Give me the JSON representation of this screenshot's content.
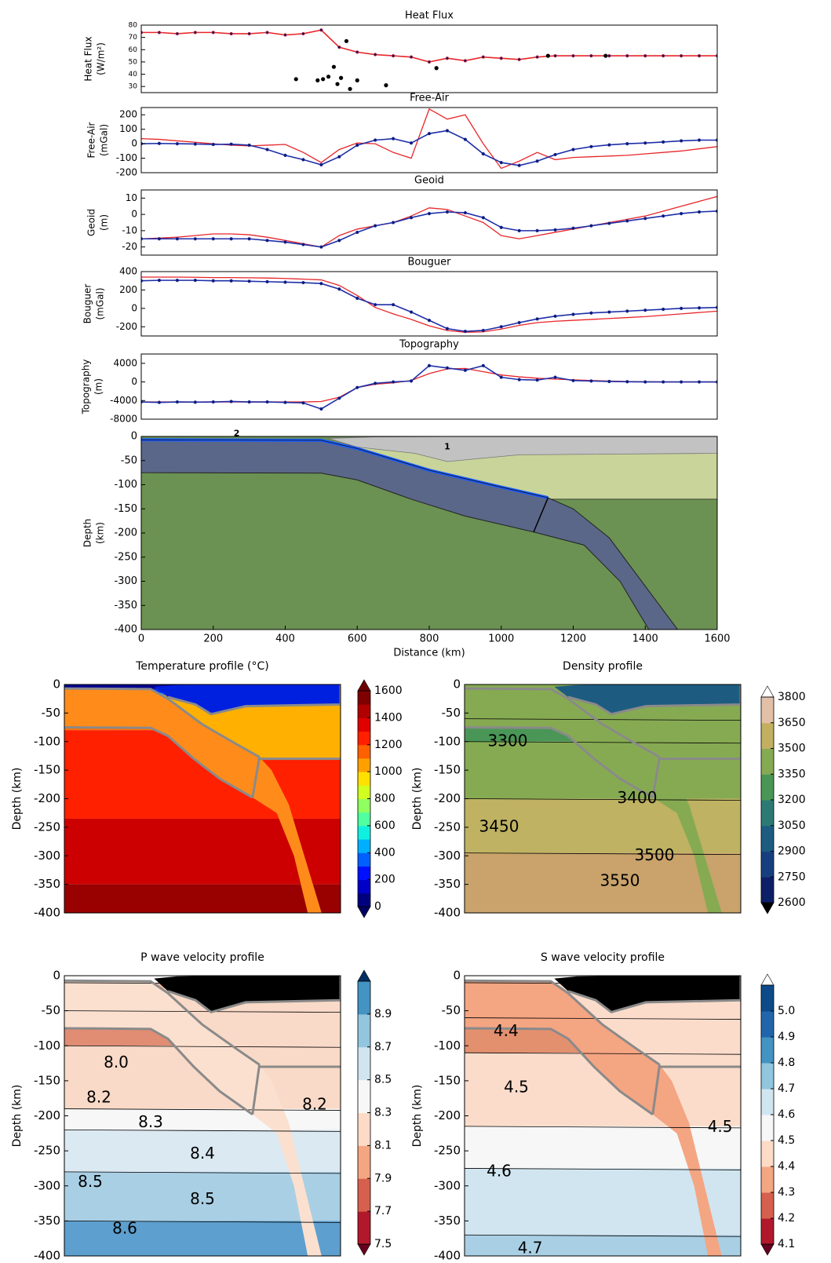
{
  "chart_data": [
    {
      "type": "line",
      "title": "Heat Flux",
      "ylabel": [
        "Heat Flux",
        "(W/m²)"
      ],
      "xlim": [
        0,
        1600
      ],
      "ylim": [
        25,
        80
      ],
      "yticks": [
        30,
        40,
        50,
        60,
        70,
        80
      ],
      "x": [
        0,
        50,
        100,
        150,
        200,
        250,
        300,
        350,
        400,
        450,
        500,
        550,
        600,
        650,
        700,
        750,
        800,
        850,
        900,
        950,
        1000,
        1050,
        1100,
        1150,
        1200,
        1250,
        1300,
        1350,
        1400,
        1450,
        1500,
        1550,
        1600
      ],
      "series": [
        {
          "mode": "line-dots",
          "color": "#e8262a",
          "values": [
            74,
            74,
            73,
            74,
            74,
            73,
            73,
            74,
            72,
            73,
            76,
            62,
            58,
            56,
            55,
            54,
            50,
            53,
            51,
            54,
            53,
            52,
            54,
            55,
            55,
            55,
            55,
            55,
            55,
            55,
            55,
            55,
            55
          ]
        },
        {
          "mode": "scatter",
          "color": "#000000",
          "x": [
            430,
            490,
            505,
            520,
            535,
            545,
            555,
            570,
            580,
            600,
            680,
            820,
            1130,
            1290
          ],
          "values": [
            36,
            35,
            36,
            38,
            46,
            32,
            37,
            67,
            28,
            35,
            31,
            45,
            55,
            55
          ]
        }
      ]
    },
    {
      "type": "line",
      "title": "Free-Air",
      "ylabel": [
        "Free-Air",
        "(mGal)"
      ],
      "xlim": [
        0,
        1600
      ],
      "ylim": [
        -200,
        250
      ],
      "yticks": [
        -200,
        -100,
        0,
        100,
        200
      ],
      "x": [
        0,
        50,
        100,
        150,
        200,
        250,
        300,
        350,
        400,
        450,
        500,
        550,
        600,
        650,
        700,
        750,
        800,
        850,
        900,
        950,
        1000,
        1050,
        1100,
        1150,
        1200,
        1250,
        1300,
        1350,
        1400,
        1450,
        1500,
        1550,
        1600
      ],
      "series": [
        {
          "mode": "line",
          "color": "#e8262a",
          "values": [
            35,
            30,
            20,
            10,
            0,
            -10,
            -15,
            -10,
            -5,
            -60,
            -130,
            -40,
            5,
            0,
            -60,
            -100,
            240,
            170,
            200,
            0,
            -170,
            -120,
            -60,
            -110,
            -95,
            -90,
            -85,
            -80,
            -70,
            -60,
            -50,
            -35,
            -20
          ]
        },
        {
          "mode": "line-dots",
          "color": "#1f2fa8",
          "values": [
            0,
            2,
            0,
            -2,
            -5,
            -3,
            -10,
            -40,
            -80,
            -110,
            -145,
            -90,
            -10,
            25,
            35,
            5,
            70,
            90,
            30,
            -70,
            -130,
            -150,
            -120,
            -75,
            -40,
            -20,
            -8,
            0,
            5,
            12,
            20,
            25,
            25
          ]
        }
      ]
    },
    {
      "type": "line",
      "title": "Geoid",
      "ylabel": [
        "Geoid",
        "(m)"
      ],
      "xlim": [
        0,
        1600
      ],
      "ylim": [
        -25,
        15
      ],
      "yticks": [
        -20,
        -10,
        0,
        10
      ],
      "x": [
        0,
        50,
        100,
        150,
        200,
        250,
        300,
        350,
        400,
        450,
        500,
        550,
        600,
        650,
        700,
        750,
        800,
        850,
        900,
        950,
        1000,
        1050,
        1100,
        1150,
        1200,
        1250,
        1300,
        1350,
        1400,
        1450,
        1500,
        1550,
        1600
      ],
      "series": [
        {
          "mode": "line",
          "color": "#e8262a",
          "values": [
            -15,
            -14.5,
            -14,
            -13,
            -12,
            -12,
            -12.5,
            -14,
            -16,
            -18,
            -20,
            -13,
            -9,
            -7,
            -5,
            -1,
            4,
            3,
            -1,
            -5,
            -13,
            -15,
            -13,
            -11,
            -9,
            -7,
            -5,
            -3,
            -1,
            2,
            5,
            8,
            11
          ]
        },
        {
          "mode": "line-dots",
          "color": "#1f2fa8",
          "values": [
            -15,
            -15,
            -15,
            -15,
            -15,
            -15,
            -15,
            -16,
            -17,
            -18.5,
            -20,
            -16,
            -11,
            -7,
            -5,
            -2,
            0.5,
            1.5,
            1,
            -2,
            -8,
            -10,
            -10,
            -9.5,
            -8.5,
            -7,
            -5.5,
            -4,
            -2.5,
            -1,
            0.5,
            1.5,
            2
          ]
        }
      ]
    },
    {
      "type": "line",
      "title": "Bouguer",
      "ylabel": [
        "Bouguer",
        "(mGal)"
      ],
      "xlim": [
        0,
        1600
      ],
      "ylim": [
        -300,
        400
      ],
      "yticks": [
        -200,
        0,
        200,
        400
      ],
      "x": [
        0,
        50,
        100,
        150,
        200,
        250,
        300,
        350,
        400,
        450,
        500,
        550,
        600,
        650,
        700,
        750,
        800,
        850,
        900,
        950,
        1000,
        1050,
        1100,
        1150,
        1200,
        1250,
        1300,
        1350,
        1400,
        1450,
        1500,
        1550,
        1600
      ],
      "series": [
        {
          "mode": "line",
          "color": "#e8262a",
          "values": [
            340,
            340,
            340,
            338,
            335,
            335,
            333,
            330,
            325,
            318,
            310,
            250,
            140,
            10,
            -60,
            -120,
            -190,
            -240,
            -260,
            -255,
            -225,
            -185,
            -155,
            -140,
            -130,
            -120,
            -110,
            -100,
            -90,
            -75,
            -60,
            -45,
            -30
          ]
        },
        {
          "mode": "line-dots",
          "color": "#1f2fa8",
          "values": [
            300,
            305,
            305,
            305,
            300,
            300,
            295,
            290,
            285,
            280,
            270,
            210,
            110,
            40,
            40,
            -40,
            -130,
            -220,
            -250,
            -240,
            -200,
            -155,
            -115,
            -85,
            -65,
            -50,
            -40,
            -30,
            -20,
            -10,
            0,
            5,
            10
          ]
        }
      ]
    },
    {
      "type": "line",
      "title": "Topography",
      "ylabel": [
        "Topography",
        "(m)"
      ],
      "xlim": [
        0,
        1600
      ],
      "ylim": [
        -8000,
        6000
      ],
      "yticks": [
        -8000,
        -4000,
        0,
        4000
      ],
      "x": [
        0,
        50,
        100,
        150,
        200,
        250,
        300,
        350,
        400,
        450,
        500,
        550,
        600,
        650,
        700,
        750,
        800,
        850,
        900,
        950,
        1000,
        1050,
        1100,
        1150,
        1200,
        1250,
        1300,
        1350,
        1400,
        1450,
        1500,
        1550,
        1600
      ],
      "series": [
        {
          "mode": "line",
          "color": "#e8262a",
          "values": [
            -4300,
            -4300,
            -4300,
            -4300,
            -4300,
            -4300,
            -4300,
            -4300,
            -4300,
            -4300,
            -4200,
            -3300,
            -1200,
            -500,
            -200,
            300,
            1800,
            2800,
            2900,
            2200,
            1500,
            1100,
            800,
            600,
            450,
            300,
            200,
            100,
            50,
            0,
            0,
            0,
            0
          ]
        },
        {
          "mode": "line-dots",
          "color": "#1f2fa8",
          "values": [
            -4300,
            -4400,
            -4300,
            -4350,
            -4300,
            -4200,
            -4300,
            -4300,
            -4400,
            -4500,
            -5800,
            -3500,
            -1200,
            -300,
            0,
            200,
            3500,
            3000,
            2500,
            3500,
            1000,
            500,
            400,
            1000,
            300,
            200,
            100,
            50,
            0,
            0,
            0,
            0,
            0
          ]
        }
      ]
    },
    {
      "type": "section",
      "ylabel": [
        "Depth",
        "(km)"
      ],
      "xlabel": "Distance (km)",
      "xlim": [
        0,
        1600
      ],
      "ylim": [
        -400,
        0
      ],
      "xticks": [
        0,
        200,
        400,
        600,
        800,
        1000,
        1200,
        1400,
        1600
      ],
      "yticks": [
        -400,
        -350,
        -300,
        -250,
        -200,
        -150,
        -100,
        -50,
        0
      ],
      "annotations": [
        "1",
        "2"
      ]
    },
    {
      "type": "contour",
      "title": "Temperature profile (°C)",
      "ylabel": "Depth (km)",
      "xlim": [
        0,
        1600
      ],
      "ylim": [
        -400,
        0
      ],
      "yticks": [
        -400,
        -350,
        -300,
        -250,
        -200,
        -150,
        -100,
        -50,
        0
      ],
      "colorbar": {
        "clim": [
          0,
          1600
        ],
        "ticks": [
          0,
          200,
          400,
          600,
          800,
          1000,
          1200,
          1400,
          1600
        ],
        "colors": [
          "#00007f",
          "#0000c8",
          "#0010ff",
          "#0060ff",
          "#00b0ff",
          "#10f0e0",
          "#50ffa0",
          "#90ff60",
          "#d0ff20",
          "#ffe000",
          "#ffa000",
          "#ff6000",
          "#ff2000",
          "#e00000",
          "#b00000",
          "#800000"
        ],
        "extend": [
          "#000060",
          "#700000"
        ]
      },
      "contour_labels": []
    },
    {
      "type": "contour",
      "title": "Density profile",
      "ylabel": "Depth (km)",
      "xlim": [
        0,
        1600
      ],
      "ylim": [
        -400,
        0
      ],
      "yticks": [
        -400,
        -350,
        -300,
        -250,
        -200,
        -150,
        -100,
        -50,
        0
      ],
      "colorbar": {
        "clim": [
          2600,
          3800
        ],
        "ticks": [
          2600,
          2750,
          2900,
          3050,
          3200,
          3350,
          3500,
          3650,
          3800
        ],
        "colors": [
          "#0d1f66",
          "#173f7f",
          "#1d5c80",
          "#2d7a74",
          "#4a9656",
          "#86aa52",
          "#c2b060",
          "#e2c0a8"
        ],
        "extend": [
          "#000000",
          "#ffffff"
        ]
      },
      "contour_labels": [
        3300,
        3400,
        3450,
        3500,
        3550
      ]
    },
    {
      "type": "contour",
      "title": "P wave velocity profile",
      "ylabel": "Depth (km)",
      "xlim": [
        0,
        1600
      ],
      "ylim": [
        -400,
        0
      ],
      "yticks": [
        -400,
        -350,
        -300,
        -250,
        -200,
        -150,
        -100,
        -50,
        0
      ],
      "colorbar": {
        "clim": [
          7.5,
          9.1
        ],
        "ticks": [
          7.5,
          7.7,
          7.9,
          8.1,
          8.3,
          8.5,
          8.7,
          8.9
        ],
        "colors": [
          "#b2182b",
          "#d6604d",
          "#f4a582",
          "#fddbc7",
          "#f7f7f7",
          "#d1e5f0",
          "#92c5de",
          "#4393c3"
        ],
        "extend": [
          "#67001f",
          "#053061"
        ]
      },
      "contour_labels": [
        {
          "value": 8,
          "label": "8.0"
        },
        8.2,
        8.3,
        8.2,
        8.4,
        8.5,
        8.5,
        8.6
      ]
    },
    {
      "type": "contour",
      "title": "S wave velocity profile",
      "ylabel": "Depth (km)",
      "xlim": [
        0,
        1600
      ],
      "ylim": [
        -400,
        0
      ],
      "yticks": [
        -400,
        -350,
        -300,
        -250,
        -200,
        -150,
        -100,
        -50,
        0
      ],
      "colorbar": {
        "clim": [
          4.1,
          5.1
        ],
        "ticks": [
          4.1,
          4.2,
          4.3,
          4.4,
          4.5,
          4.6,
          4.7,
          4.8,
          4.9,
          {
            "value": 5,
            "label": "5.0"
          }
        ],
        "colors": [
          "#b2182b",
          "#d6604d",
          "#f4a582",
          "#fddbc7",
          "#f7f7f7",
          "#d1e5f0",
          "#92c5de",
          "#4393c3",
          "#2166ac",
          "#0d4a8a"
        ],
        "extend": [
          "#67001f",
          "#ffffff"
        ]
      },
      "contour_labels": [
        4.4,
        4.5,
        4.5,
        4.6,
        4.7
      ]
    }
  ]
}
